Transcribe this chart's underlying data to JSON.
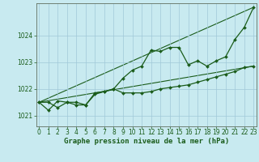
{
  "title": "Graphe pression niveau de la mer (hPa)",
  "bg_color": "#c8eaf0",
  "grid_color": "#a0c8d8",
  "line_color": "#1a5c1a",
  "marker_color": "#1a5c1a",
  "xlim": [
    -0.3,
    23.3
  ],
  "ylim": [
    1020.6,
    1025.2
  ],
  "yticks": [
    1021,
    1022,
    1023,
    1024
  ],
  "xticks": [
    0,
    1,
    2,
    3,
    4,
    5,
    6,
    7,
    8,
    9,
    10,
    11,
    12,
    13,
    14,
    15,
    16,
    17,
    18,
    19,
    20,
    21,
    22,
    23
  ],
  "series1_x": [
    0,
    1,
    2,
    3,
    4,
    5,
    6,
    7,
    8,
    9,
    10,
    11,
    12,
    13,
    14,
    15,
    16,
    17,
    18,
    19,
    20,
    21,
    22,
    23
  ],
  "series1_y": [
    1021.5,
    1021.5,
    1021.3,
    1021.5,
    1021.5,
    1021.4,
    1021.8,
    1021.9,
    1022.0,
    1022.4,
    1022.7,
    1022.85,
    1023.45,
    1023.4,
    1023.55,
    1023.55,
    1022.9,
    1023.05,
    1022.85,
    1023.05,
    1023.2,
    1023.85,
    1024.3,
    1025.05
  ],
  "series2_x": [
    0,
    1,
    2,
    3,
    4,
    5,
    6,
    7,
    8,
    9,
    10,
    11,
    12,
    13,
    14,
    15,
    16,
    17,
    18,
    19,
    20,
    21,
    22,
    23
  ],
  "series2_y": [
    1021.5,
    1021.2,
    1021.55,
    1021.5,
    1021.4,
    1021.4,
    1021.85,
    1021.9,
    1022.0,
    1021.85,
    1021.85,
    1021.85,
    1021.9,
    1022.0,
    1022.05,
    1022.1,
    1022.15,
    1022.25,
    1022.35,
    1022.45,
    1022.55,
    1022.65,
    1022.8,
    1022.85
  ],
  "series3_x": [
    0,
    23
  ],
  "series3_y": [
    1021.5,
    1025.05
  ],
  "series4_x": [
    0,
    23
  ],
  "series4_y": [
    1021.5,
    1022.85
  ],
  "tick_fontsize": 5.5,
  "title_fontsize": 6.5
}
